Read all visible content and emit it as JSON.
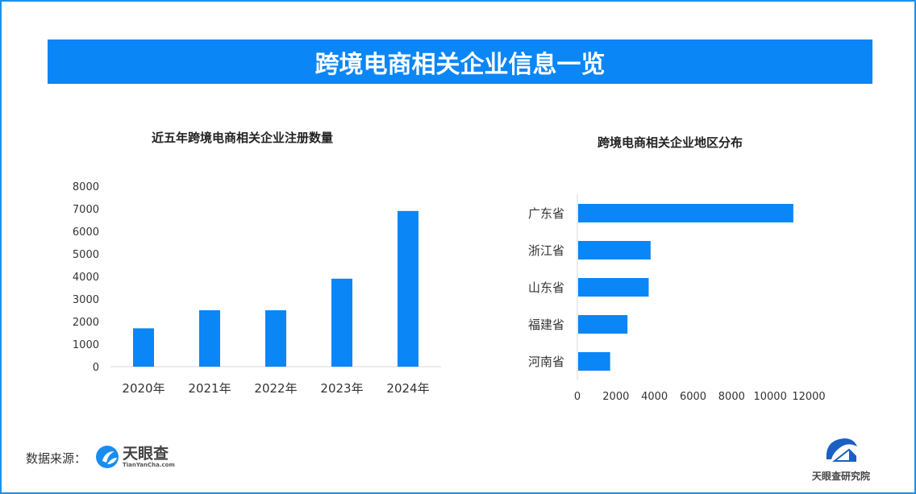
{
  "header": {
    "title": "跨境电商相关企业信息一览"
  },
  "footer": {
    "source_label": "数据来源：",
    "logo_name": "天眼查",
    "logo_url_text": "TianYanCha.com",
    "institute": "天眼查研究院"
  },
  "colors": {
    "bar": "#0a86f7",
    "banner": "#0a86f7",
    "axis": "#d9d9d9"
  },
  "chart_data": [
    {
      "type": "bar",
      "title": "近五年跨境电商相关企业注册数量",
      "categories": [
        "2020年",
        "2021年",
        "2022年",
        "2023年",
        "2024年"
      ],
      "values": [
        1700,
        2500,
        2500,
        3900,
        6900
      ],
      "ylim": [
        0,
        8000
      ],
      "yticks": [
        "0",
        "1000",
        "2000",
        "3000",
        "4000",
        "5000",
        "6000",
        "7000",
        "8000"
      ],
      "grid": false,
      "orientation": "vertical"
    },
    {
      "type": "bar",
      "title": "跨境电商相关企业地区分布",
      "categories": [
        "广东省",
        "浙江省",
        "山东省",
        "福建省",
        "河南省"
      ],
      "values": [
        11200,
        3800,
        3700,
        2600,
        1700
      ],
      "xlim": [
        0,
        12000
      ],
      "xticks": [
        "0",
        "2000",
        "4000",
        "6000",
        "8000",
        "10000",
        "12000"
      ],
      "grid": false,
      "orientation": "horizontal"
    }
  ]
}
